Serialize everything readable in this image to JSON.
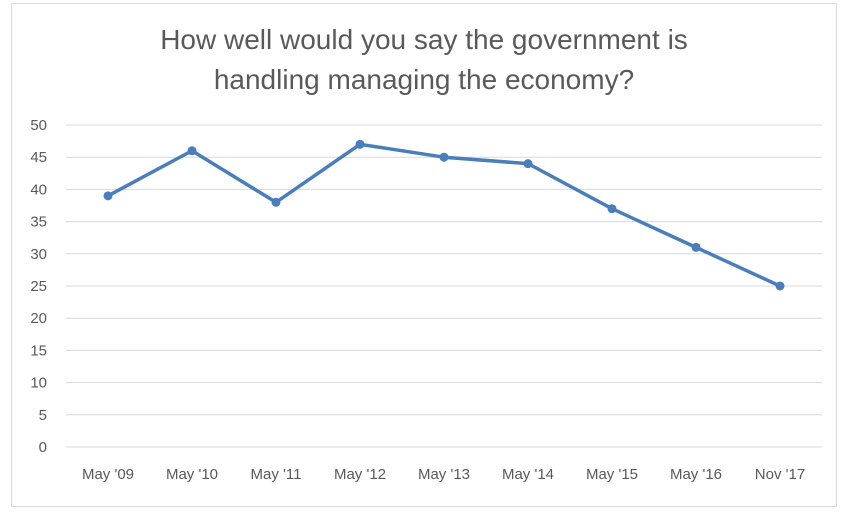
{
  "chart_data": {
    "type": "line",
    "title_lines": [
      "How well would you say the government is",
      "handling managing the economy?"
    ],
    "categories": [
      "May '09",
      "May '10",
      "May '11",
      "May '12",
      "May '13",
      "May '14",
      "May '15",
      "May '16",
      "Nov '17"
    ],
    "series": [
      {
        "values": [
          39,
          46,
          38,
          47,
          45,
          44,
          37,
          31,
          25
        ]
      }
    ],
    "ylim": [
      0,
      50
    ],
    "yticks": [
      0,
      5,
      10,
      15,
      20,
      25,
      30,
      35,
      40,
      45,
      50
    ],
    "grid": true,
    "legend": "none",
    "line_color": "#4a7ebb",
    "grid_color": "#d9d9d9",
    "text_color": "#595959"
  }
}
